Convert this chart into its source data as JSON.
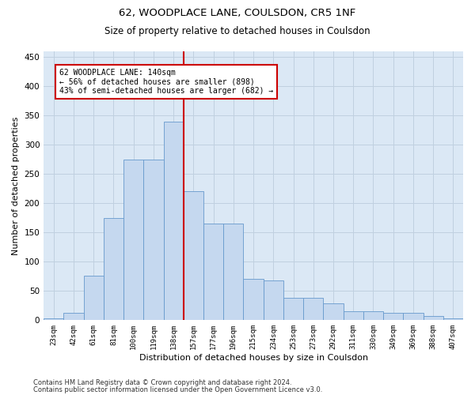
{
  "title1": "62, WOODPLACE LANE, COULSDON, CR5 1NF",
  "title2": "Size of property relative to detached houses in Coulsdon",
  "xlabel": "Distribution of detached houses by size in Coulsdon",
  "ylabel": "Number of detached properties",
  "bar_labels": [
    "23sqm",
    "42sqm",
    "61sqm",
    "81sqm",
    "100sqm",
    "119sqm",
    "138sqm",
    "157sqm",
    "177sqm",
    "196sqm",
    "215sqm",
    "234sqm",
    "253sqm",
    "273sqm",
    "292sqm",
    "311sqm",
    "330sqm",
    "349sqm",
    "369sqm",
    "388sqm",
    "407sqm"
  ],
  "bar_values": [
    2,
    12,
    75,
    175,
    275,
    275,
    340,
    220,
    165,
    165,
    70,
    68,
    38,
    38,
    28,
    15,
    15,
    12,
    12,
    7,
    2
  ],
  "bar_color": "#c5d8ef",
  "bar_edge_color": "#6699cc",
  "grid_color": "#c0d0e0",
  "background_color": "#dbe8f5",
  "vline_color": "#cc0000",
  "annotation_box_edge": "#cc0000",
  "annotation_line1": "62 WOODPLACE LANE: 140sqm",
  "annotation_line2": "← 56% of detached houses are smaller (898)",
  "annotation_line3": "43% of semi-detached houses are larger (682) →",
  "footer1": "Contains HM Land Registry data © Crown copyright and database right 2024.",
  "footer2": "Contains public sector information licensed under the Open Government Licence v3.0.",
  "ylim": [
    0,
    460
  ],
  "yticks": [
    0,
    50,
    100,
    150,
    200,
    250,
    300,
    350,
    400,
    450
  ]
}
